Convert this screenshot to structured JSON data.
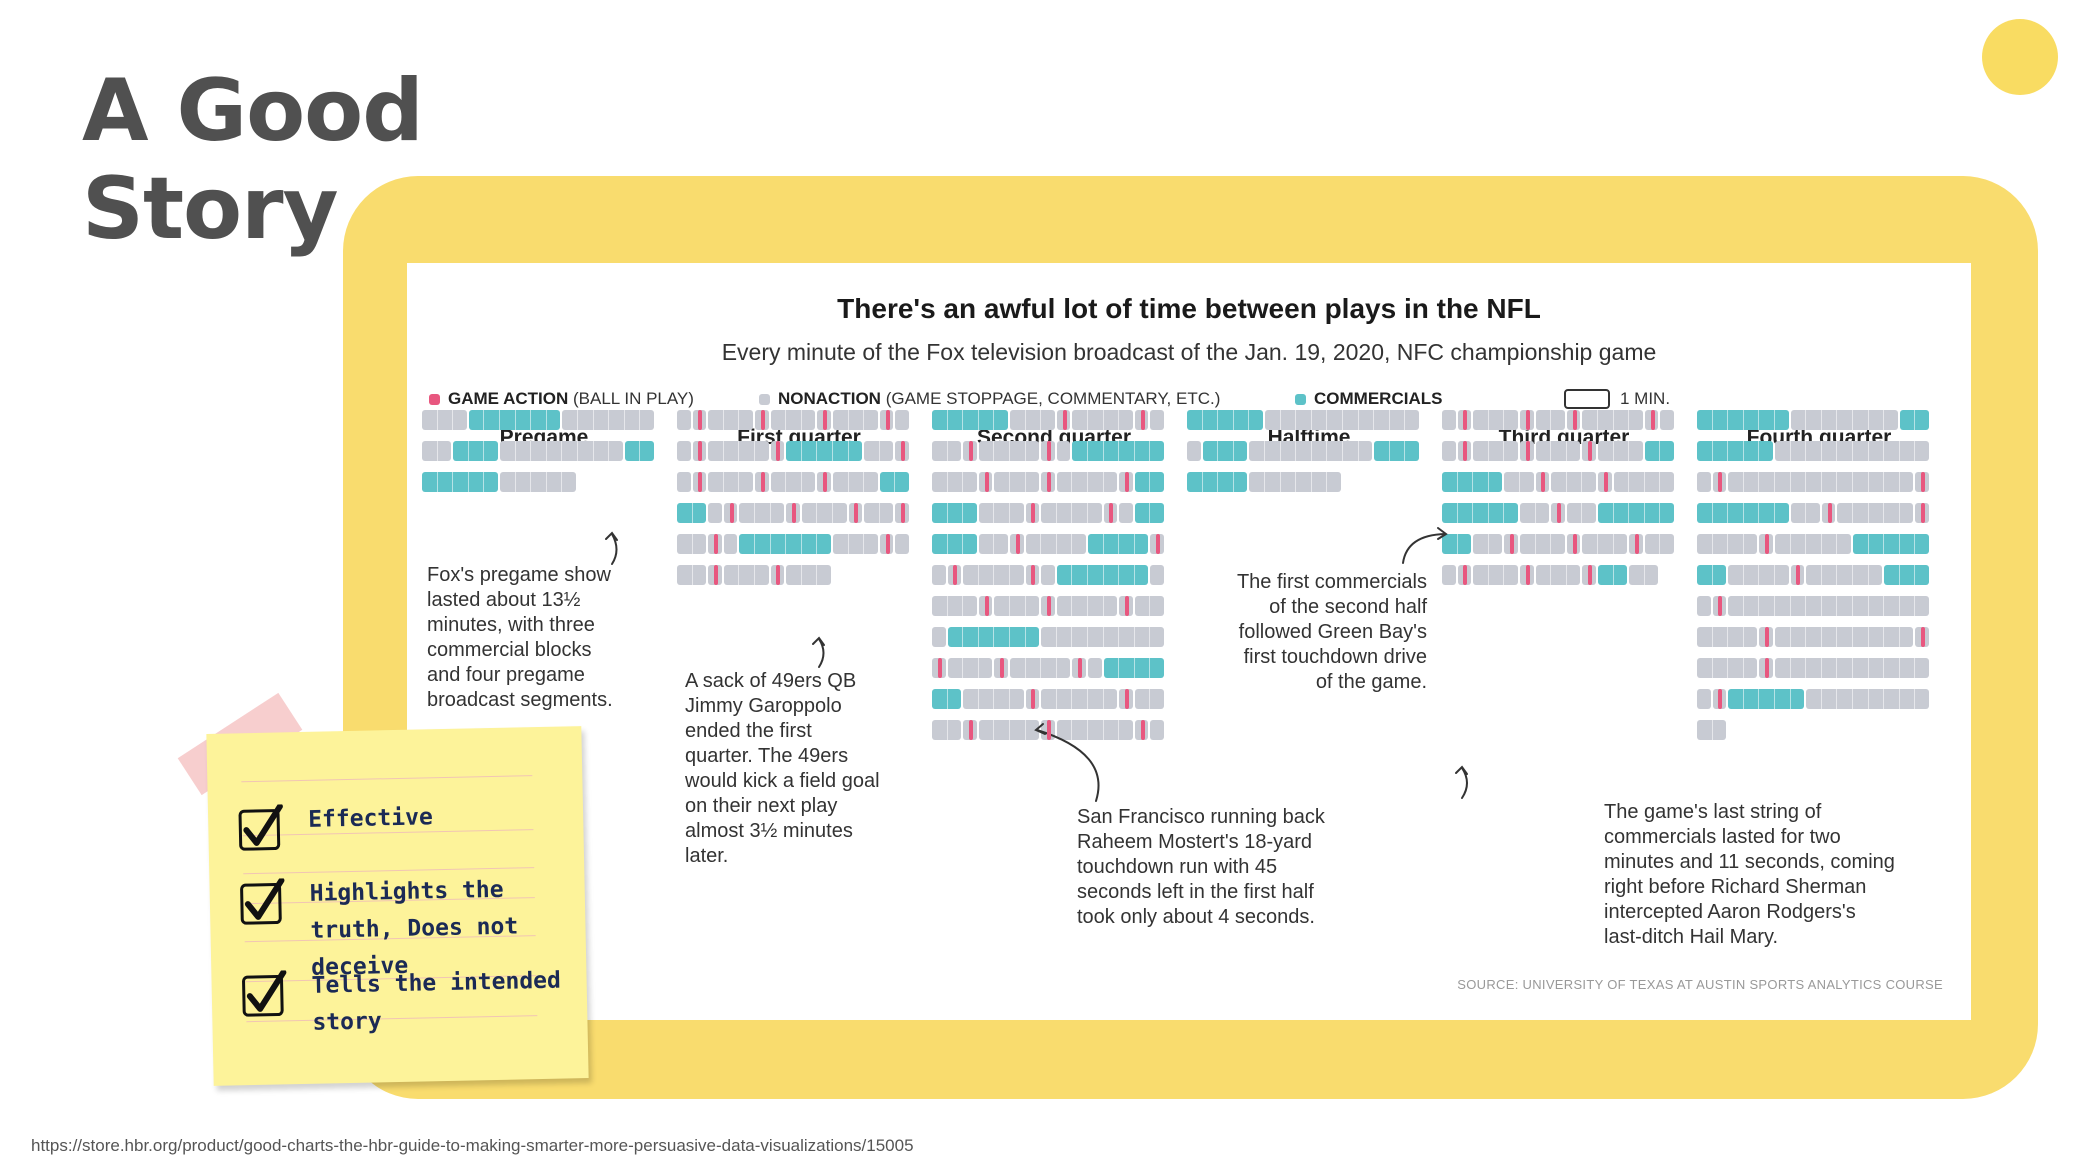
{
  "slide": {
    "title_line1": "A Good",
    "title_line2": "Story",
    "url": "https://store.hbr.org/product/good-charts-the-hbr-guide-to-making-smarter-more-persuasive-data-visualizations/15005"
  },
  "sticky_note": {
    "items": [
      {
        "text": "Effective"
      },
      {
        "text": "Highlights the truth, Does not deceive"
      },
      {
        "text": "Tells the intended story"
      }
    ]
  },
  "colors": {
    "frame": "#f9dc6e",
    "accent_circle": "#f9dc62",
    "game_action": "#e8577f",
    "nonaction": "#c8cbd3",
    "commercials": "#5dc2c8"
  },
  "chart_data": {
    "type": "timeline-grid",
    "title": "There's an awful lot of time between plays in the NFL",
    "subtitle": "Every minute of the Fox television broadcast of the Jan. 19, 2020, NFC championship game",
    "legend": {
      "game_action_label": "GAME ACTION",
      "game_action_note": "(BALL IN PLAY)",
      "nonaction_label": "NONACTION",
      "nonaction_note": "(GAME STOPPAGE, COMMENTARY, ETC.)",
      "commercials_label": "COMMERCIALS",
      "unit_label": "1 MIN."
    },
    "minutes_per_row": 15,
    "codes": {
      "A": "game action",
      "N": "nonaction",
      "C": "commercials"
    },
    "columns": [
      {
        "label": "Pregame",
        "rows": [
          "NNNCCCCCCNNNNNN",
          "NNCCCNNNNNNNNCC",
          "CCCCCNNNNN"
        ]
      },
      {
        "label": "First quarter",
        "rows": [
          "NANNNANNNANNNAN",
          "NANNNNACCCCCNNA",
          "NANNNANNNANNNCC",
          "CCNANNNANNNANNA",
          "NNANCCCCCCNNNAN",
          "NNANNNANNN"
        ]
      },
      {
        "label": "Second quarter",
        "rows": [
          "CCCCCNNNANNNNAN",
          "NNANNNNANCCCCCC",
          "NNNANNNANNNNACC",
          "CCCNNNANNNNANCC",
          "CCCNNANNNNCCCCA",
          "NANNNNANCCCCCCN",
          "NNNANNNANNNNANN",
          "NCCCCCCNNNNNNNN",
          "ANNNANNNNANCCCC",
          "CCNNNNANNNNNANN",
          "NNANNNNANNNNNAN"
        ]
      },
      {
        "label": "Halftime",
        "rows": [
          "CCCCCNNNNNNNNNN",
          "NCCCNNNNNNNNCCC",
          "CCCCNNNNNN"
        ]
      },
      {
        "label": "Third quarter",
        "rows": [
          "NANNNANNANNNNAN",
          "NANNNANNNANNNCC",
          "CCCCNNANNNANNNN",
          "CCCCCNNANNCCCCC",
          "CCNNANNNANNNANN",
          "NANNNANNNACCNN"
        ]
      },
      {
        "label": "Fourth quarter",
        "rows": [
          "CCCCCCNNNNNNNCC",
          "CCCCCNNNNNNNNNN",
          "NANNNNNNNNNNNNA",
          "CCCCCCNNANNNNNA",
          "NNNNANNNNNCCCCC",
          "CCNNNNANNNNNCCC",
          "NANNNNNNNNNNNNN",
          "NNNNANNNNNNNNNA",
          "NNNNANNNNNNNNNN",
          "NACCCCCNNNNNNNN",
          "NN"
        ]
      }
    ],
    "annotations": [
      {
        "text": "Fox's pregame show\nlasted about 13½\nminutes, with three\ncommercial blocks\nand four pregame\nbroadcast segments."
      },
      {
        "text": "A sack of 49ers QB\nJimmy Garoppolo\nended the first\nquarter. The 49ers\nwould kick a field goal\non their next play\nalmost 3½ minutes\nlater."
      },
      {
        "text": "San Francisco running back\nRaheem Mostert's 18-yard\ntouchdown run with 45\nseconds left in the first half\ntook only about 4 seconds."
      },
      {
        "text": "The first commercials\nof the second half\nfollowed Green Bay's\nfirst touchdown drive\nof the game."
      },
      {
        "text": "The game's last string of\ncommercials lasted for two\nminutes and 11 seconds, coming\nright before Richard Sherman\nintercepted Aaron Rodgers's\nlast-ditch Hail Mary."
      }
    ],
    "source": "SOURCE: UNIVERSITY OF TEXAS AT AUSTIN SPORTS ANALYTICS COURSE"
  }
}
